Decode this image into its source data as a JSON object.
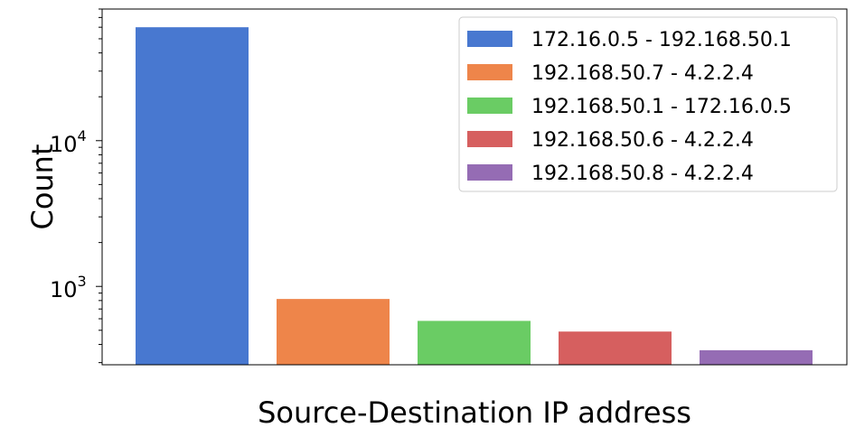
{
  "chart_data": {
    "type": "bar",
    "xlabel": "Source-Destination IP address",
    "ylabel": "Count",
    "yscale": "log",
    "ylim": [
      290,
      80000
    ],
    "grid": false,
    "legend_position": "top-right",
    "yticks": [
      {
        "value": 1000,
        "base": "10",
        "exp": "3"
      },
      {
        "value": 10000,
        "base": "10",
        "exp": "4"
      }
    ],
    "series": [
      {
        "name": "172.16.0.5 - 192.168.50.1",
        "value": 60000,
        "color": "#4878d0"
      },
      {
        "name": "192.168.50.7 - 4.2.2.4",
        "value": 820,
        "color": "#ee854a"
      },
      {
        "name": "192.168.50.1 - 172.16.0.5",
        "value": 580,
        "color": "#6acc64"
      },
      {
        "name": "192.168.50.6 - 4.2.2.4",
        "value": 490,
        "color": "#d65f5f"
      },
      {
        "name": "192.168.50.8 - 4.2.2.4",
        "value": 365,
        "color": "#956cb4"
      }
    ]
  }
}
